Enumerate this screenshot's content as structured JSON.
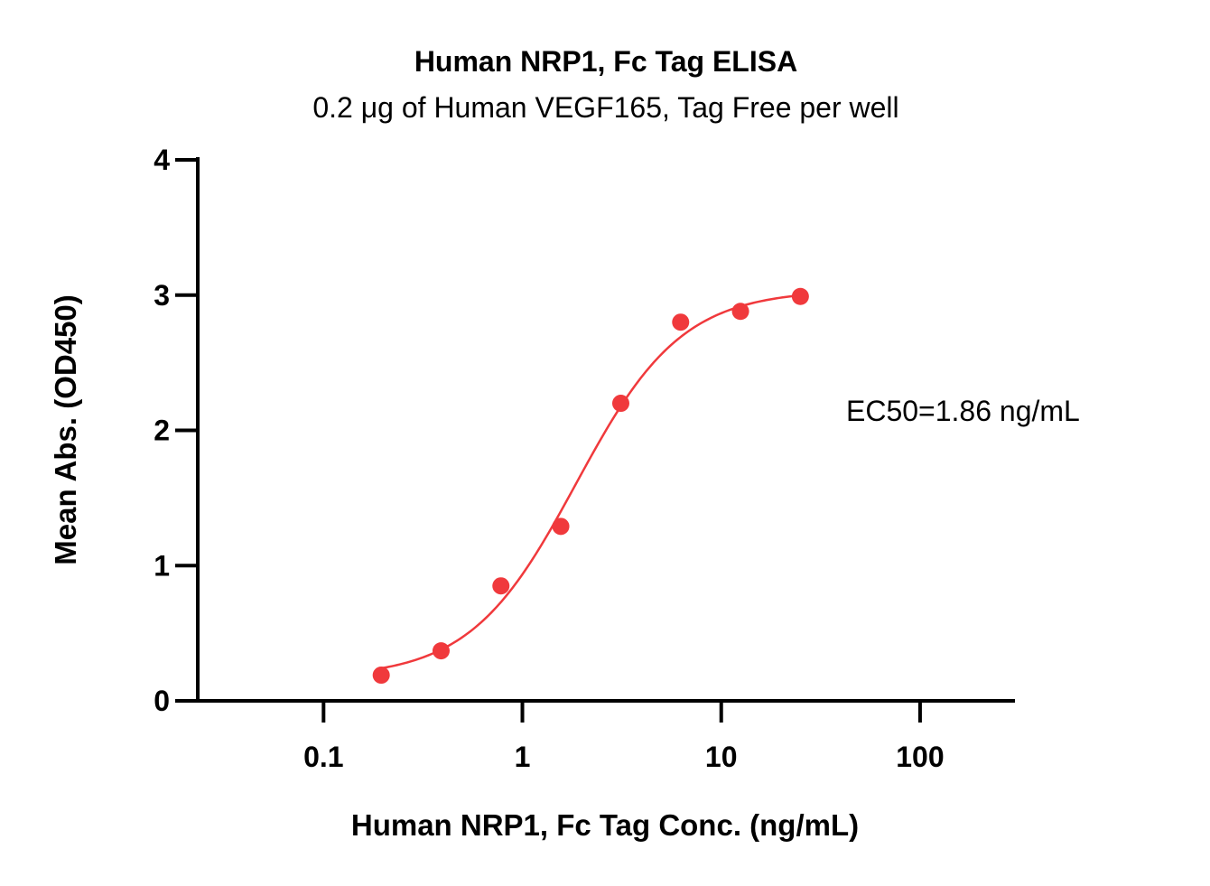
{
  "chart_data": {
    "type": "scatter",
    "title": "Human NRP1, Fc Tag ELISA",
    "subtitle": "0.2 μg of Human VEGF165, Tag Free per well",
    "xlabel": "Human NRP1, Fc Tag Conc. (ng/mL)",
    "ylabel": "Mean Abs. (OD450)",
    "x_scale": "log",
    "xlim": [
      0.0233,
      300
    ],
    "ylim": [
      0,
      4
    ],
    "x_ticks": [
      0.1,
      1,
      10,
      100
    ],
    "x_tick_labels": [
      "0.1",
      "1",
      "10",
      "100"
    ],
    "y_ticks": [
      0,
      1,
      2,
      3,
      4
    ],
    "y_tick_labels": [
      "0",
      "1",
      "2",
      "3",
      "4"
    ],
    "grid": false,
    "legend": "none",
    "series": [
      {
        "color": "#f0393c",
        "x": [
          0.195,
          0.39,
          0.78,
          1.56,
          3.125,
          6.25,
          12.5,
          25
        ],
        "y": [
          0.19,
          0.37,
          0.85,
          1.29,
          2.2,
          2.8,
          2.88,
          2.99
        ],
        "fit": {
          "model": "4PL",
          "bottom": 0.17,
          "top": 3.04,
          "ec50": 1.86,
          "hill": 1.63
        }
      }
    ],
    "annotations": [
      {
        "text": "EC50=1.86 ng/mL"
      }
    ]
  }
}
